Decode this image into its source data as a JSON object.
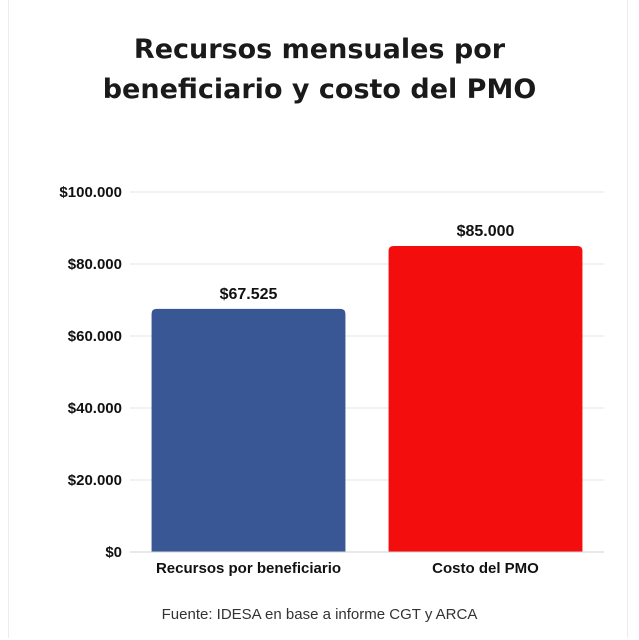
{
  "chart_data": {
    "type": "bar",
    "title_lines": [
      "Recursos mensuales por",
      "beneficiario y costo del PMO"
    ],
    "categories": [
      "Recursos por beneficiario",
      "Costo del PMO"
    ],
    "values": [
      67525,
      85000
    ],
    "value_labels": [
      "$67.525",
      "$85.000"
    ],
    "bar_colors": [
      "#3a5795",
      "#f40d0d"
    ],
    "ylim": [
      0,
      100000
    ],
    "yticks": [
      0,
      20000,
      40000,
      60000,
      80000,
      100000
    ],
    "ytick_labels": [
      "$0",
      "$20.000",
      "$40.000",
      "$60.000",
      "$80.000",
      "$100.000"
    ],
    "xlabel": "",
    "ylabel": "",
    "grid": true,
    "legend": "none"
  },
  "source": "Fuente: IDESA en base a informe CGT y ARCA"
}
